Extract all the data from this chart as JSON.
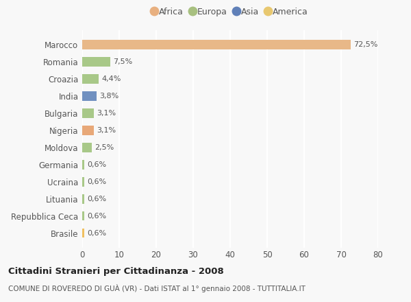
{
  "categories": [
    "Brasile",
    "Repubblica Ceca",
    "Lituania",
    "Ucraina",
    "Germania",
    "Moldova",
    "Nigeria",
    "Bulgaria",
    "India",
    "Croazia",
    "Romania",
    "Marocco"
  ],
  "values": [
    0.6,
    0.6,
    0.6,
    0.6,
    0.6,
    2.5,
    3.1,
    3.1,
    3.8,
    4.4,
    7.5,
    72.5
  ],
  "labels": [
    "0,6%",
    "0,6%",
    "0,6%",
    "0,6%",
    "0,6%",
    "2,5%",
    "3,1%",
    "3,1%",
    "3,8%",
    "4,4%",
    "7,5%",
    "72,5%"
  ],
  "bar_colors": [
    "#F0C060",
    "#A8C888",
    "#A8C888",
    "#A8C888",
    "#A8C888",
    "#A8C888",
    "#E8A878",
    "#A8C888",
    "#7090C0",
    "#A8C888",
    "#A8C888",
    "#E8B888"
  ],
  "continent_colors": {
    "Africa": "#E8B080",
    "Europa": "#A8C080",
    "Asia": "#6080B8",
    "America": "#E8C870"
  },
  "legend_labels": [
    "Africa",
    "Europa",
    "Asia",
    "America"
  ],
  "xlim": [
    0,
    80
  ],
  "xticks": [
    0,
    10,
    20,
    30,
    40,
    50,
    60,
    70,
    80
  ],
  "title": "Cittadini Stranieri per Cittadinanza - 2008",
  "subtitle": "COMUNE DI ROVEREDO DI GUÀ (VR) - Dati ISTAT al 1° gennaio 2008 - TUTTITALIA.IT",
  "bg_color": "#F8F8F8",
  "grid_color": "#FFFFFF",
  "bar_height": 0.55
}
